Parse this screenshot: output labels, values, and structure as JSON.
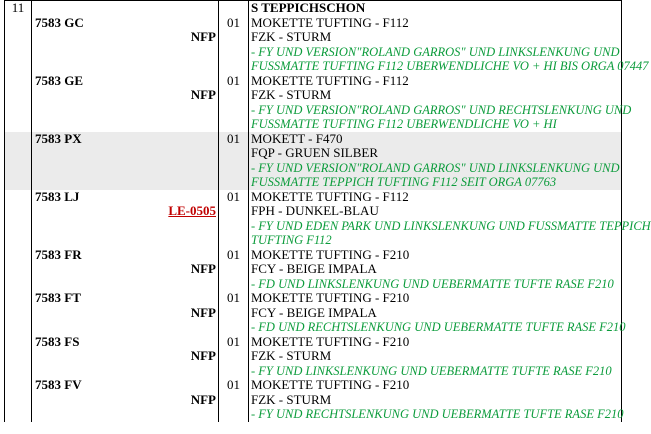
{
  "colors": {
    "note_green": "#0c9c3c",
    "link_red": "#c00000",
    "highlight_gray": "#ebebeb",
    "border_black": "#000000",
    "background": "#ffffff"
  },
  "table": {
    "group_number": "11",
    "section_header": "S TEPPICHSCHON",
    "rows": [
      {
        "code": "7583 GC",
        "nfp": "NFP",
        "qty": "01",
        "desc1": "MOKETTE TUFTING - F112",
        "desc2": "FZK - STURM",
        "note1": "- FY UND VERSION\"ROLAND GARROS\" UND LINKSLENKUNG UND",
        "note2": "FUSSMATTE TUFTING F112 UBERWENDLICHE VO + HI BIS ORGA 07447"
      },
      {
        "code": "7583 GE",
        "nfp": "NFP",
        "qty": "01",
        "desc1": "MOKETTE TUFTING - F112",
        "desc2": "FZK - STURM",
        "note1": "- FY UND VERSION\"ROLAND GARROS\" UND RECHTSLENKUNG UND",
        "note2": "FUSSMATTE TUFTING F112 UBERWENDLICHE VO + HI"
      },
      {
        "code": "7583 PX",
        "qty": "01",
        "desc1": "MOKETT - F470",
        "desc2": "FQP - GRUEN SILBER",
        "note1": "- FY UND VERSION\"ROLAND GARROS\" UND LINKSLENKUNG UND",
        "note2": "FUSSMATTE TEPPICH TUFTING F112 SEIT ORGA 07763"
      },
      {
        "code": "7583 LJ",
        "link": "LE-0505",
        "qty": "01",
        "desc1": "MOKETTE TUFTING - F112",
        "desc2": "FPH - DUNKEL-BLAU",
        "note1": "- FY UND EDEN PARK UND LINKSLENKUNG UND FUSSMATTE TEPPICH",
        "note2": "TUFTING F112"
      },
      {
        "code": "7583 FR",
        "nfp": "NFP",
        "qty": "01",
        "desc1": "MOKETTE TUFTING - F210",
        "desc2": "FCY - BEIGE IMPALA",
        "note1": "- FD UND LINKSLENKUNG UND UEBERMATTE TUFTE RASE F210"
      },
      {
        "code": "7583 FT",
        "nfp": "NFP",
        "qty": "01",
        "desc1": "MOKETTE TUFTING - F210",
        "desc2": "FCY - BEIGE IMPALA",
        "note1": "- FD UND RECHTSLENKUNG UND UEBERMATTE TUFTE RASE F210"
      },
      {
        "code": "7583 FS",
        "nfp": "NFP",
        "qty": "01",
        "desc1": "MOKETTE TUFTING - F210",
        "desc2": "FZK - STURM",
        "note1": "- FY UND LINKSLENKUNG UND UEBERMATTE TUFTE RASE F210"
      },
      {
        "code": "7583 FV",
        "nfp": "NFP",
        "qty": "01",
        "desc1": "MOKETTE TUFTING - F210",
        "desc2": "FZK - STURM",
        "note1": "- FY UND RECHTSLENKUNG UND UEBERMATTE TUFTE RASE F210"
      }
    ]
  }
}
